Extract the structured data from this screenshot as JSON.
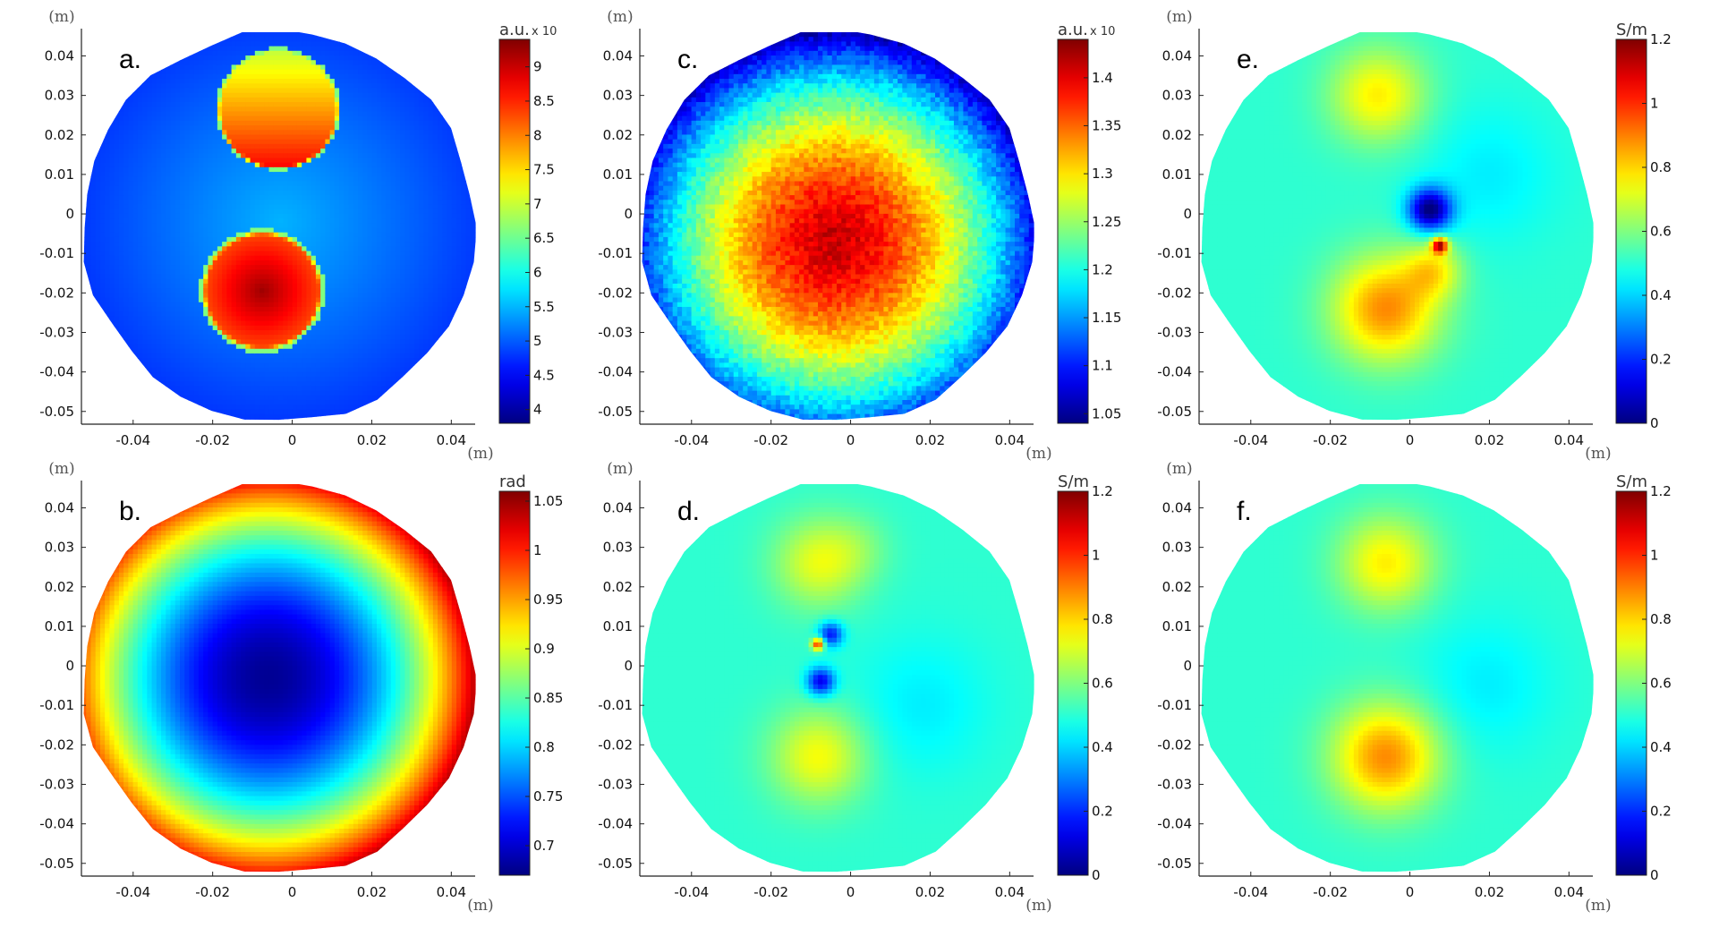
{
  "chart_data": [
    {
      "type": "heatmap",
      "panel": "a.",
      "pattern": "two-discs",
      "x_unit": "(m)",
      "y_unit": "(m)",
      "xlim": [
        -0.053,
        0.046
      ],
      "ylim": [
        -0.053,
        0.046
      ],
      "x_ticks": [
        "-0.04",
        "-0.02",
        "0",
        "0.02",
        "0.04"
      ],
      "y_ticks": [
        "0.04",
        "0.03",
        "0.02",
        "0.01",
        "0",
        "-0.01",
        "-0.02",
        "-0.03",
        "-0.04",
        "-0.05"
      ],
      "colorbar": {
        "unit": "a.u.",
        "exponent": "x 10",
        "ticks": [
          "9",
          "8.5",
          "8",
          "7.5",
          "7",
          "6.5",
          "6",
          "5.5",
          "5",
          "4.5",
          "4"
        ],
        "range": [
          3.8,
          9.4
        ]
      },
      "colormap": "jet"
    },
    {
      "type": "heatmap",
      "panel": "b.",
      "pattern": "radial-increasing",
      "x_unit": "(m)",
      "y_unit": "(m)",
      "xlim": [
        -0.053,
        0.046
      ],
      "ylim": [
        -0.053,
        0.046
      ],
      "x_ticks": [
        "-0.04",
        "-0.02",
        "0",
        "0.02",
        "0.04"
      ],
      "y_ticks": [
        "0.04",
        "0.03",
        "0.02",
        "0.01",
        "0",
        "-0.01",
        "-0.02",
        "-0.03",
        "-0.04",
        "-0.05"
      ],
      "colorbar": {
        "unit": "rad",
        "exponent": "",
        "ticks": [
          "1.05",
          "1",
          "0.95",
          "0.9",
          "0.85",
          "0.8",
          "0.75",
          "0.7"
        ],
        "range": [
          0.67,
          1.06
        ]
      },
      "colormap": "jet"
    },
    {
      "type": "heatmap",
      "panel": "c.",
      "pattern": "radial-decreasing",
      "x_unit": "(m)",
      "y_unit": "(m)",
      "xlim": [
        -0.053,
        0.046
      ],
      "ylim": [
        -0.053,
        0.046
      ],
      "x_ticks": [
        "-0.04",
        "-0.02",
        "0",
        "0.02",
        "0.04"
      ],
      "y_ticks": [
        "0.04",
        "0.03",
        "0.02",
        "0.01",
        "0",
        "-0.01",
        "-0.02",
        "-0.03",
        "-0.04",
        "-0.05"
      ],
      "colorbar": {
        "unit": "a.u.",
        "exponent": "x 10",
        "ticks": [
          "1.4",
          "1.35",
          "1.3",
          "1.25",
          "1.2",
          "1.15",
          "1.1",
          "1.05"
        ],
        "range": [
          1.04,
          1.44
        ]
      },
      "colormap": "jet"
    },
    {
      "type": "heatmap",
      "panel": "d.",
      "pattern": "conductivity-d",
      "x_unit": "(m)",
      "y_unit": "(m)",
      "xlim": [
        -0.053,
        0.046
      ],
      "ylim": [
        -0.053,
        0.046
      ],
      "x_ticks": [
        "-0.04",
        "-0.02",
        "0",
        "0.02",
        "0.04"
      ],
      "y_ticks": [
        "0.04",
        "0.03",
        "0.02",
        "0.01",
        "0",
        "-0.01",
        "-0.02",
        "-0.03",
        "-0.04",
        "-0.05"
      ],
      "colorbar": {
        "unit": "S/m",
        "exponent": "",
        "ticks": [
          "1.2",
          "1",
          "0.8",
          "0.6",
          "0.4",
          "0.2",
          "0"
        ],
        "range": [
          0,
          1.2
        ]
      },
      "colormap": "jet"
    },
    {
      "type": "heatmap",
      "panel": "e.",
      "pattern": "conductivity-e",
      "x_unit": "(m)",
      "y_unit": "(m)",
      "xlim": [
        -0.053,
        0.046
      ],
      "ylim": [
        -0.053,
        0.046
      ],
      "x_ticks": [
        "-0.04",
        "-0.02",
        "0",
        "0.02",
        "0.04"
      ],
      "y_ticks": [
        "0.04",
        "0.03",
        "0.02",
        "0.01",
        "0",
        "-0.01",
        "-0.02",
        "-0.03",
        "-0.04",
        "-0.05"
      ],
      "colorbar": {
        "unit": "S/m",
        "exponent": "",
        "ticks": [
          "1.2",
          "1",
          "0.8",
          "0.6",
          "0.4",
          "0.2",
          "0"
        ],
        "range": [
          0,
          1.2
        ]
      },
      "colormap": "jet"
    },
    {
      "type": "heatmap",
      "panel": "f.",
      "pattern": "conductivity-f",
      "x_unit": "(m)",
      "y_unit": "(m)",
      "xlim": [
        -0.053,
        0.046
      ],
      "ylim": [
        -0.053,
        0.046
      ],
      "x_ticks": [
        "-0.04",
        "-0.02",
        "0",
        "0.02",
        "0.04"
      ],
      "y_ticks": [
        "0.04",
        "0.03",
        "0.02",
        "0.01",
        "0",
        "-0.01",
        "-0.02",
        "-0.03",
        "-0.04",
        "-0.05"
      ],
      "colorbar": {
        "unit": "S/m",
        "exponent": "",
        "ticks": [
          "1.2",
          "1",
          "0.8",
          "0.6",
          "0.4",
          "0.2",
          "0"
        ],
        "range": [
          0,
          1.2
        ]
      },
      "colormap": "jet"
    }
  ]
}
